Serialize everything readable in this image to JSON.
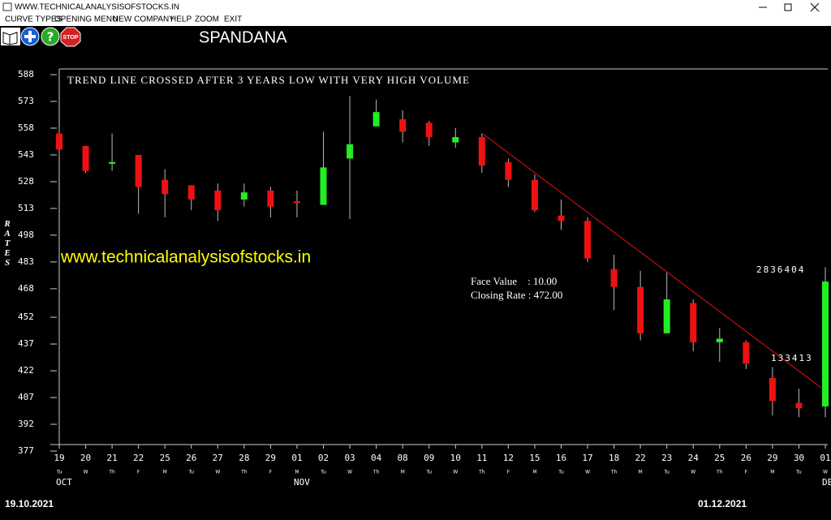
{
  "window_title": "WWW.TECHNICALANALYSISOFSTOCKS.IN",
  "menu": [
    "CURVE TYPES",
    "OPENING MENU",
    "NEW COMPANY",
    "HELP",
    "ZOOM",
    "EXIT"
  ],
  "toolbar_stop": "STOP",
  "chart_data": {
    "type": "candlestick",
    "title": "SPANDANA",
    "y_label": "RATES",
    "annotation": "TREND LINE CROSSED AFTER 3 YEARS LOW WITH VERY HIGH VOLUME",
    "watermark": "www.technicalanalysisofstocks.in",
    "info": [
      "Face Value    : 10.00",
      "Closing Rate : 472.00"
    ],
    "volume_labels": [
      "2836404",
      "133413"
    ],
    "categories": [
      "19",
      "20",
      "21",
      "22",
      "25",
      "26",
      "27",
      "28",
      "29",
      "01",
      "02",
      "03",
      "04",
      "08",
      "09",
      "10",
      "11",
      "12",
      "15",
      "16",
      "17",
      "18",
      "22",
      "23",
      "24",
      "25",
      "26",
      "29",
      "30",
      "01"
    ],
    "weekdays": [
      "Tu",
      "W",
      "Th",
      "F",
      "M",
      "Tu",
      "W",
      "Th",
      "F",
      "M",
      "Tu",
      "W",
      "Th",
      "M",
      "Tu",
      "W",
      "Th",
      "F",
      "M",
      "Tu",
      "W",
      "Th",
      "M",
      "Tu",
      "W",
      "Th",
      "F",
      "M",
      "Tu",
      "W"
    ],
    "month_labels": [
      "OCT",
      null,
      null,
      null,
      null,
      null,
      null,
      null,
      null,
      "NOV",
      null,
      null,
      null,
      null,
      null,
      null,
      null,
      null,
      null,
      null,
      null,
      null,
      null,
      null,
      null,
      null,
      null,
      null,
      null,
      "DE"
    ],
    "start_date": "19.10.2021",
    "end_date": "01.12.2021",
    "open": [
      555,
      548,
      538,
      543,
      529,
      526,
      523,
      518,
      523,
      517,
      515,
      541,
      559,
      563,
      561,
      550,
      553,
      539,
      529,
      509,
      506,
      479,
      469,
      443,
      460,
      438,
      438,
      418,
      404,
      402
    ],
    "high": [
      558,
      548,
      555,
      543,
      535,
      526,
      527,
      527,
      525,
      523,
      556,
      576,
      574,
      568,
      562,
      558,
      555,
      541,
      532,
      518,
      508,
      487,
      478,
      477,
      462,
      446,
      439,
      424,
      412,
      480
    ],
    "low": [
      543,
      533,
      534,
      510,
      508,
      512,
      506,
      514,
      508,
      508,
      515,
      507,
      559,
      550,
      548,
      547,
      533,
      525,
      511,
      501,
      483,
      456,
      439,
      443,
      433,
      427,
      423,
      397,
      396,
      396
    ],
    "close": [
      546,
      534,
      539,
      525,
      521,
      518,
      512,
      522,
      514,
      516,
      536,
      549,
      567,
      556,
      553,
      553,
      537,
      529,
      512,
      506,
      485,
      469,
      443,
      462,
      438,
      440,
      426,
      405,
      401,
      472
    ],
    "up_color": "#22ee22",
    "down_color": "#ee1111",
    "ylim": [
      377,
      588
    ],
    "yticks": [
      377,
      392,
      407,
      422,
      437,
      452,
      468,
      483,
      498,
      513,
      528,
      543,
      558,
      573,
      588
    ]
  }
}
